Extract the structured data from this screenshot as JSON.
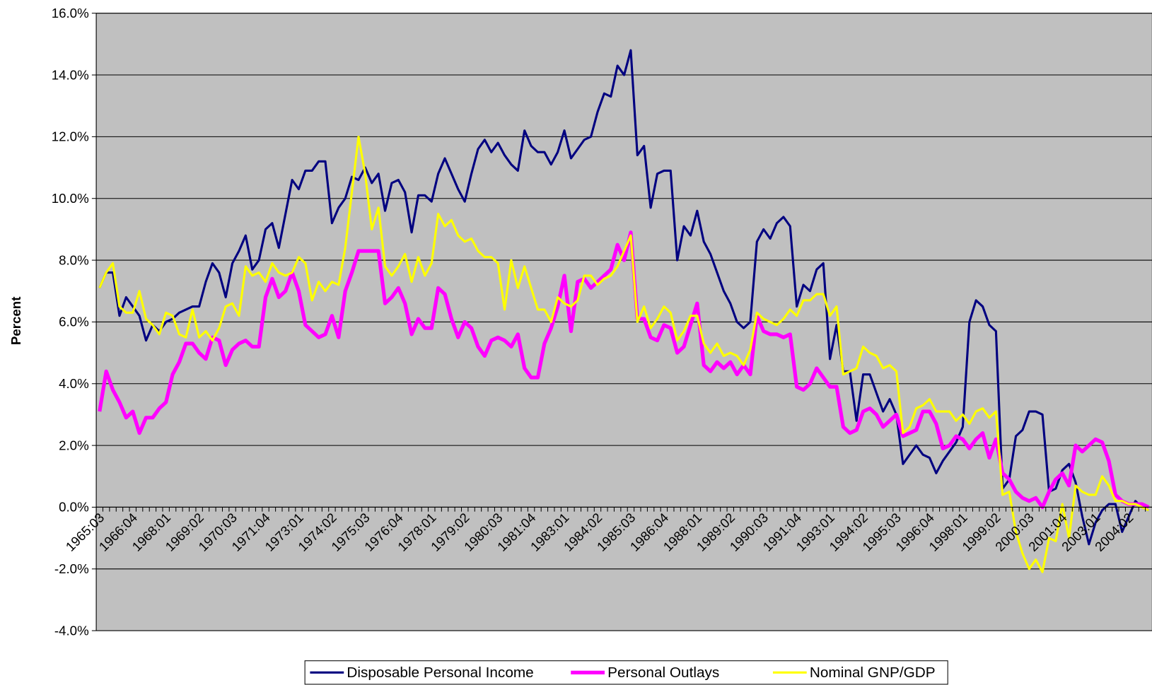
{
  "chart_data": {
    "type": "line",
    "y_axis_label": "Percent",
    "categories": [
      "1965:03",
      null,
      null,
      null,
      null,
      "1966:04",
      null,
      null,
      null,
      null,
      "1968:01",
      null,
      null,
      null,
      null,
      "1969:02",
      null,
      null,
      null,
      null,
      "1970:03",
      null,
      null,
      null,
      null,
      "1971:04",
      null,
      null,
      null,
      null,
      "1973:01",
      null,
      null,
      null,
      null,
      "1974:02",
      null,
      null,
      null,
      null,
      "1975:03",
      null,
      null,
      null,
      null,
      "1976:04",
      null,
      null,
      null,
      null,
      "1978:01",
      null,
      null,
      null,
      null,
      "1979:02",
      null,
      null,
      null,
      null,
      "1980:03",
      null,
      null,
      null,
      null,
      "1981:04",
      null,
      null,
      null,
      null,
      "1983:01",
      null,
      null,
      null,
      null,
      "1984:02",
      null,
      null,
      null,
      null,
      "1985:03",
      null,
      null,
      null,
      null,
      "1986:04",
      null,
      null,
      null,
      null,
      "1988:01",
      null,
      null,
      null,
      null,
      "1989:02",
      null,
      null,
      null,
      null,
      "1990:03",
      null,
      null,
      null,
      null,
      "1991:04",
      null,
      null,
      null,
      null,
      "1993:01",
      null,
      null,
      null,
      null,
      "1994:02",
      null,
      null,
      null,
      null,
      "1995:03",
      null,
      null,
      null,
      null,
      "1996:04",
      null,
      null,
      null,
      null,
      "1998:01",
      null,
      null,
      null,
      null,
      "1999:02",
      null,
      null,
      null,
      null,
      "2000:03",
      null,
      null,
      null,
      null,
      "2001:04",
      null,
      null,
      null,
      null,
      "2003:01",
      null,
      null,
      null,
      null,
      "2004:02",
      null,
      null,
      null
    ],
    "series": [
      {
        "name": "Disposable Personal Income",
        "color": "#000080",
        "width": 3,
        "values": [
          7.1,
          7.6,
          7.6,
          6.2,
          6.8,
          6.5,
          6.2,
          5.4,
          5.9,
          5.7,
          6.0,
          6.1,
          6.3,
          6.4,
          6.5,
          6.5,
          7.3,
          7.9,
          7.6,
          6.8,
          7.9,
          8.3,
          8.8,
          7.7,
          8.0,
          9.0,
          9.2,
          8.4,
          9.5,
          10.6,
          10.3,
          10.9,
          10.9,
          11.2,
          11.2,
          9.2,
          9.7,
          10.0,
          10.7,
          10.6,
          11.0,
          10.5,
          10.8,
          9.6,
          10.5,
          10.6,
          10.2,
          8.9,
          10.1,
          10.1,
          9.9,
          10.8,
          11.3,
          10.8,
          10.3,
          9.9,
          10.8,
          11.6,
          11.9,
          11.5,
          11.8,
          11.4,
          11.1,
          10.9,
          12.2,
          11.7,
          11.5,
          11.5,
          11.1,
          11.5,
          12.2,
          11.3,
          11.6,
          11.9,
          12.0,
          12.8,
          13.4,
          13.3,
          14.3,
          14.0,
          14.8,
          11.4,
          11.7,
          9.7,
          10.8,
          10.9,
          10.9,
          8.0,
          9.1,
          8.8,
          9.6,
          8.6,
          8.2,
          7.6,
          7.0,
          6.6,
          6.0,
          5.8,
          6.0,
          8.6,
          9.0,
          8.7,
          9.2,
          9.4,
          9.1,
          6.5,
          7.2,
          7.0,
          7.7,
          7.9,
          4.8,
          5.9,
          4.4,
          4.4,
          2.8,
          4.3,
          4.3,
          3.7,
          3.1,
          3.5,
          3.0,
          1.4,
          1.7,
          2.0,
          1.7,
          1.6,
          1.1,
          1.5,
          1.8,
          2.1,
          2.6,
          6.0,
          6.7,
          6.5,
          5.9,
          5.7,
          0.6,
          0.9,
          2.3,
          2.5,
          3.1,
          3.1,
          3.0,
          0.5,
          0.6,
          1.2,
          1.4,
          0.8,
          -0.3,
          -1.2,
          -0.5,
          -0.1,
          0.1,
          0.1,
          -0.8,
          -0.3,
          0.2,
          0.0,
          -0.1
        ]
      },
      {
        "name": "Personal Outlays",
        "color": "#ff00ff",
        "width": 5,
        "values": [
          3.1,
          4.4,
          3.8,
          3.4,
          2.9,
          3.1,
          2.4,
          2.9,
          2.9,
          3.2,
          3.4,
          4.3,
          4.7,
          5.3,
          5.3,
          5.0,
          4.8,
          5.5,
          5.4,
          4.6,
          5.1,
          5.3,
          5.4,
          5.2,
          5.2,
          6.8,
          7.4,
          6.8,
          7.0,
          7.6,
          7.0,
          5.9,
          5.7,
          5.5,
          5.6,
          6.2,
          5.5,
          7.0,
          7.6,
          8.3,
          8.3,
          8.3,
          8.3,
          6.6,
          6.8,
          7.1,
          6.6,
          5.6,
          6.1,
          5.8,
          5.8,
          7.1,
          6.9,
          6.1,
          5.5,
          6.0,
          5.8,
          5.2,
          4.9,
          5.4,
          5.5,
          5.4,
          5.2,
          5.6,
          4.5,
          4.2,
          4.2,
          5.3,
          5.8,
          6.5,
          7.5,
          5.7,
          7.3,
          7.4,
          7.1,
          7.3,
          7.5,
          7.7,
          8.5,
          8.0,
          8.9,
          6.1,
          6.1,
          5.5,
          5.4,
          5.9,
          5.8,
          5.0,
          5.2,
          5.9,
          6.6,
          4.6,
          4.4,
          4.7,
          4.5,
          4.7,
          4.3,
          4.6,
          4.3,
          6.2,
          5.7,
          5.6,
          5.6,
          5.5,
          5.6,
          3.9,
          3.8,
          4.0,
          4.5,
          4.2,
          3.9,
          3.9,
          2.6,
          2.4,
          2.5,
          3.1,
          3.2,
          3.0,
          2.6,
          2.8,
          3.0,
          2.3,
          2.4,
          2.5,
          3.1,
          3.1,
          2.7,
          1.9,
          2.0,
          2.3,
          2.2,
          1.9,
          2.2,
          2.4,
          1.6,
          2.2,
          1.1,
          0.9,
          0.5,
          0.3,
          0.2,
          0.3,
          0.0,
          0.5,
          0.9,
          1.1,
          0.7,
          2.0,
          1.8,
          2.0,
          2.2,
          2.1,
          1.5,
          0.4,
          0.2,
          0.1,
          0.1,
          0.1,
          0.0
        ]
      },
      {
        "name": "Nominal GNP/GDP",
        "color": "#ffff00",
        "width": 3,
        "values": [
          7.1,
          7.6,
          7.9,
          6.5,
          6.3,
          6.3,
          7.0,
          6.1,
          5.9,
          5.6,
          6.3,
          6.2,
          5.6,
          5.5,
          6.4,
          5.5,
          5.7,
          5.4,
          5.8,
          6.5,
          6.6,
          6.2,
          7.8,
          7.5,
          7.6,
          7.3,
          7.9,
          7.6,
          7.5,
          7.6,
          8.1,
          7.9,
          6.7,
          7.3,
          7.0,
          7.3,
          7.2,
          8.4,
          10.2,
          12.0,
          10.8,
          9.0,
          9.7,
          7.8,
          7.5,
          7.8,
          8.2,
          7.3,
          8.1,
          7.5,
          7.9,
          9.5,
          9.1,
          9.3,
          8.8,
          8.6,
          8.7,
          8.3,
          8.1,
          8.1,
          7.9,
          6.4,
          8.0,
          7.1,
          7.8,
          7.1,
          6.4,
          6.4,
          6.0,
          6.8,
          6.6,
          6.5,
          6.7,
          7.5,
          7.5,
          7.2,
          7.4,
          7.5,
          7.8,
          8.3,
          8.8,
          6.0,
          6.5,
          5.8,
          6.1,
          6.5,
          6.3,
          5.4,
          5.7,
          6.2,
          6.2,
          5.3,
          5.0,
          5.3,
          4.9,
          5.0,
          4.9,
          4.6,
          5.1,
          6.3,
          6.1,
          6.0,
          5.9,
          6.1,
          6.4,
          6.2,
          6.7,
          6.7,
          6.9,
          6.9,
          6.2,
          6.5,
          4.3,
          4.4,
          4.5,
          5.2,
          5.0,
          4.9,
          4.5,
          4.6,
          4.4,
          2.4,
          2.6,
          3.2,
          3.3,
          3.5,
          3.1,
          3.1,
          3.1,
          2.8,
          3.0,
          2.7,
          3.1,
          3.2,
          2.9,
          3.1,
          0.4,
          0.5,
          -0.8,
          -1.5,
          -2.0,
          -1.7,
          -2.1,
          -1.0,
          -1.1,
          0.1,
          -1.0,
          0.7,
          0.5,
          0.4,
          0.4,
          1.0,
          0.7,
          0.2,
          0.2,
          0.1,
          0.1,
          0.0,
          -0.1
        ]
      }
    ],
    "ylim": [
      -4,
      16
    ],
    "yticks": [
      {
        "value": -4,
        "label": "-4.0%"
      },
      {
        "value": -2,
        "label": "-2.0%"
      },
      {
        "value": 0,
        "label": "0.0%"
      },
      {
        "value": 2,
        "label": "2.0%"
      },
      {
        "value": 4,
        "label": "4.0%"
      },
      {
        "value": 6,
        "label": "6.0%"
      },
      {
        "value": 8,
        "label": "8.0%"
      },
      {
        "value": 10,
        "label": "10.0%"
      },
      {
        "value": 12,
        "label": "12.0%"
      },
      {
        "value": 14,
        "label": "14.0%"
      },
      {
        "value": 16,
        "label": "16.0%"
      }
    ],
    "grid": true,
    "plot_background": "#c0c0c0",
    "legend": "bottom"
  }
}
